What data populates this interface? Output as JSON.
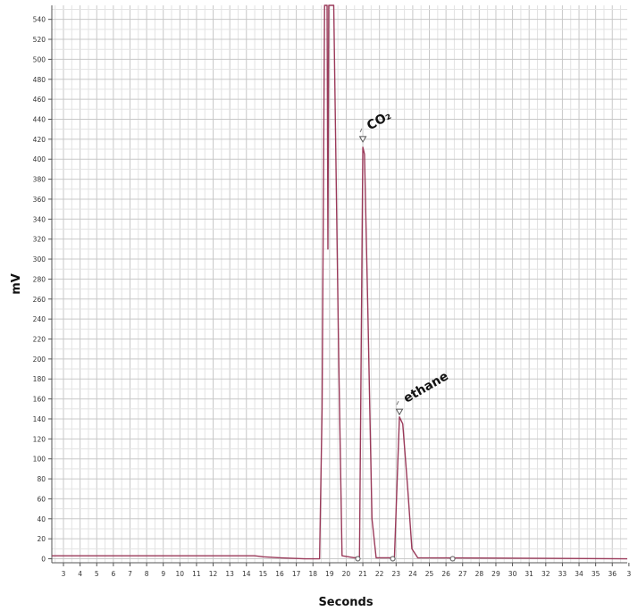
{
  "chart_data": {
    "type": "line",
    "xlabel": "Seconds",
    "ylabel": "mV",
    "xlim": [
      2.3,
      36.9
    ],
    "ylim": [
      -4,
      554
    ],
    "x_ticks": [
      "3",
      "4",
      "5",
      "6",
      "7",
      "8",
      "9",
      "10",
      "11",
      "12",
      "13",
      "14",
      "15",
      "16",
      "17",
      "18",
      "19",
      "20",
      "21",
      "22",
      "23",
      "24",
      "25",
      "26",
      "27",
      "28",
      "29",
      "30",
      "31",
      "32",
      "33",
      "34",
      "35",
      "36",
      "3"
    ],
    "y_ticks": [
      "0",
      "20",
      "40",
      "60",
      "80",
      "100",
      "120",
      "140",
      "160",
      "180",
      "200",
      "220",
      "240",
      "260",
      "280",
      "300",
      "320",
      "340",
      "360",
      "380",
      "400",
      "420",
      "440",
      "460",
      "480",
      "500",
      "520",
      "540"
    ],
    "grid": true,
    "line_color": "#9a3a5a",
    "series": [
      {
        "values": [
          [
            2.3,
            3
          ],
          [
            14.5,
            3
          ],
          [
            15.0,
            2
          ],
          [
            16.0,
            1
          ],
          [
            17.5,
            0
          ],
          [
            18.4,
            0
          ],
          [
            18.55,
            150
          ],
          [
            18.7,
            554
          ],
          [
            18.85,
            554
          ],
          [
            18.9,
            310
          ],
          [
            18.95,
            554
          ],
          [
            19.25,
            554
          ],
          [
            19.55,
            200
          ],
          [
            19.75,
            3
          ],
          [
            20.5,
            1
          ],
          [
            20.8,
            2
          ],
          [
            21.0,
            412
          ],
          [
            21.1,
            405
          ],
          [
            21.3,
            250
          ],
          [
            21.55,
            40
          ],
          [
            21.8,
            1
          ],
          [
            22.9,
            1
          ],
          [
            23.2,
            142
          ],
          [
            23.4,
            135
          ],
          [
            23.7,
            70
          ],
          [
            23.95,
            10
          ],
          [
            24.3,
            1
          ],
          [
            36.9,
            0
          ]
        ]
      }
    ],
    "peak_markers": [
      {
        "label": "CO₂",
        "x": 21.0,
        "y": 420
      },
      {
        "label": "ethane",
        "x": 23.2,
        "y": 147
      }
    ],
    "baseline_markers_x": [
      20.7,
      22.8,
      26.4
    ]
  }
}
